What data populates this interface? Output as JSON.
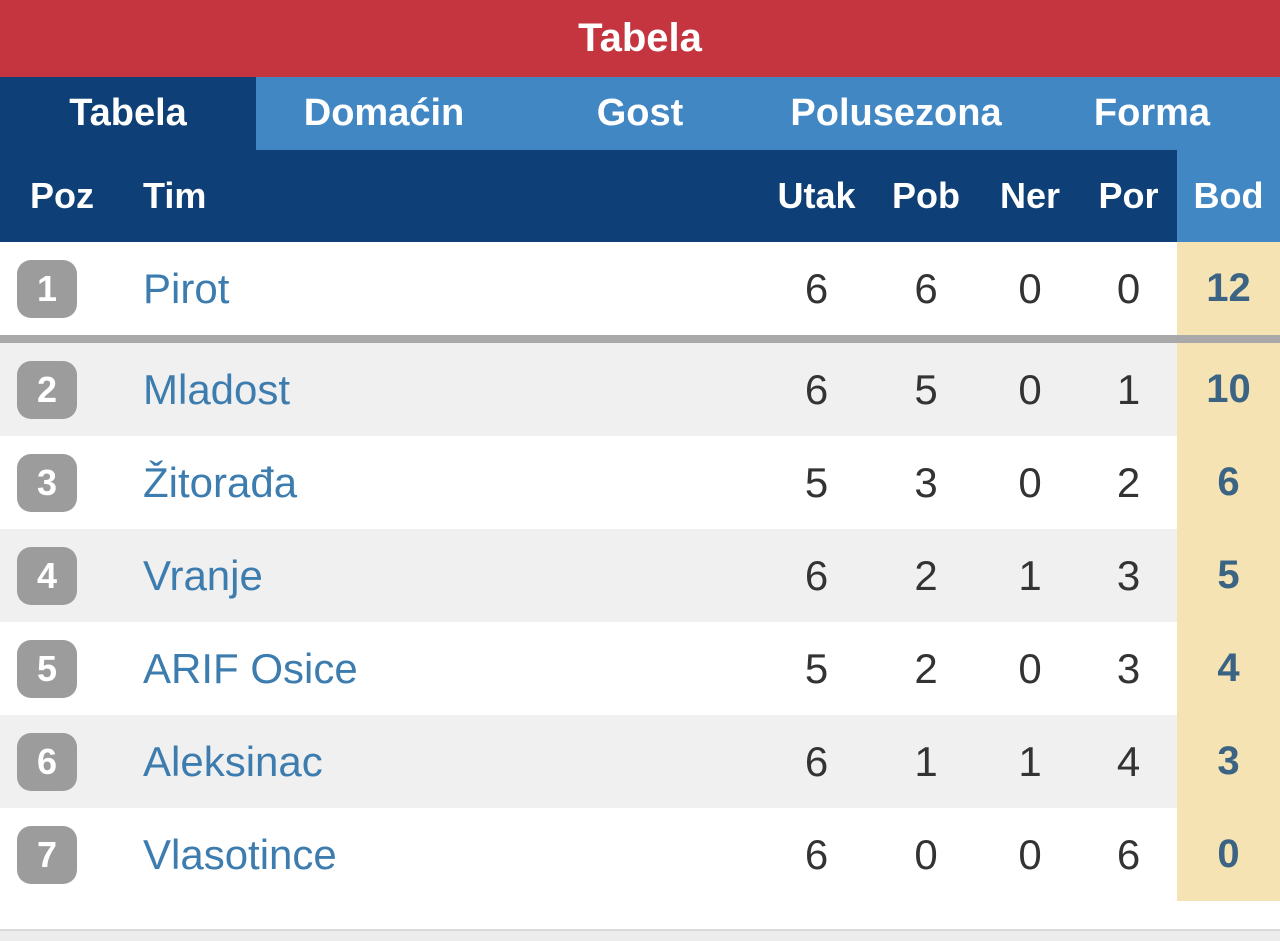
{
  "title_bar": {
    "title": "Tabela"
  },
  "tabs": [
    {
      "label": "Tabela",
      "active": true
    },
    {
      "label": "Domaćin",
      "active": false
    },
    {
      "label": "Gost",
      "active": false
    },
    {
      "label": "Polusezona",
      "active": false
    },
    {
      "label": "Forma",
      "active": false
    }
  ],
  "table": {
    "columns": {
      "poz": "Poz",
      "tim": "Tim",
      "utak": "Utak",
      "pob": "Pob",
      "ner": "Ner",
      "por": "Por",
      "bod": "Bod"
    },
    "rows": [
      {
        "poz": "1",
        "tim": "Pirot",
        "utak": "6",
        "pob": "6",
        "ner": "0",
        "por": "0",
        "bod": "12",
        "separator_after": true
      },
      {
        "poz": "2",
        "tim": "Mladost",
        "utak": "6",
        "pob": "5",
        "ner": "0",
        "por": "1",
        "bod": "10",
        "separator_after": false
      },
      {
        "poz": "3",
        "tim": "Žitorađa",
        "utak": "5",
        "pob": "3",
        "ner": "0",
        "por": "2",
        "bod": "6",
        "separator_after": false
      },
      {
        "poz": "4",
        "tim": "Vranje",
        "utak": "6",
        "pob": "2",
        "ner": "1",
        "por": "3",
        "bod": "5",
        "separator_after": false
      },
      {
        "poz": "5",
        "tim": "ARIF Osice",
        "utak": "5",
        "pob": "2",
        "ner": "0",
        "por": "3",
        "bod": "4",
        "separator_after": false
      },
      {
        "poz": "6",
        "tim": "Aleksinac",
        "utak": "6",
        "pob": "1",
        "ner": "1",
        "por": "4",
        "bod": "3",
        "separator_after": false
      },
      {
        "poz": "7",
        "tim": "Vlasotince",
        "utak": "6",
        "pob": "0",
        "ner": "0",
        "por": "6",
        "bod": "0",
        "separator_after": false
      }
    ]
  },
  "colors": {
    "title_bar_red": "#c53540",
    "tab_bar_blue": "#4087c4",
    "active_navy": "#0e4077",
    "bod_column_cream": "#f6e3b3",
    "team_name_blue": "#3d7cae",
    "bod_text_blue": "#3b6383",
    "badge_gray": "#9c9c9c",
    "alt_row_gray": "#f0f0f0",
    "separator_gray": "#a9a9a9"
  }
}
